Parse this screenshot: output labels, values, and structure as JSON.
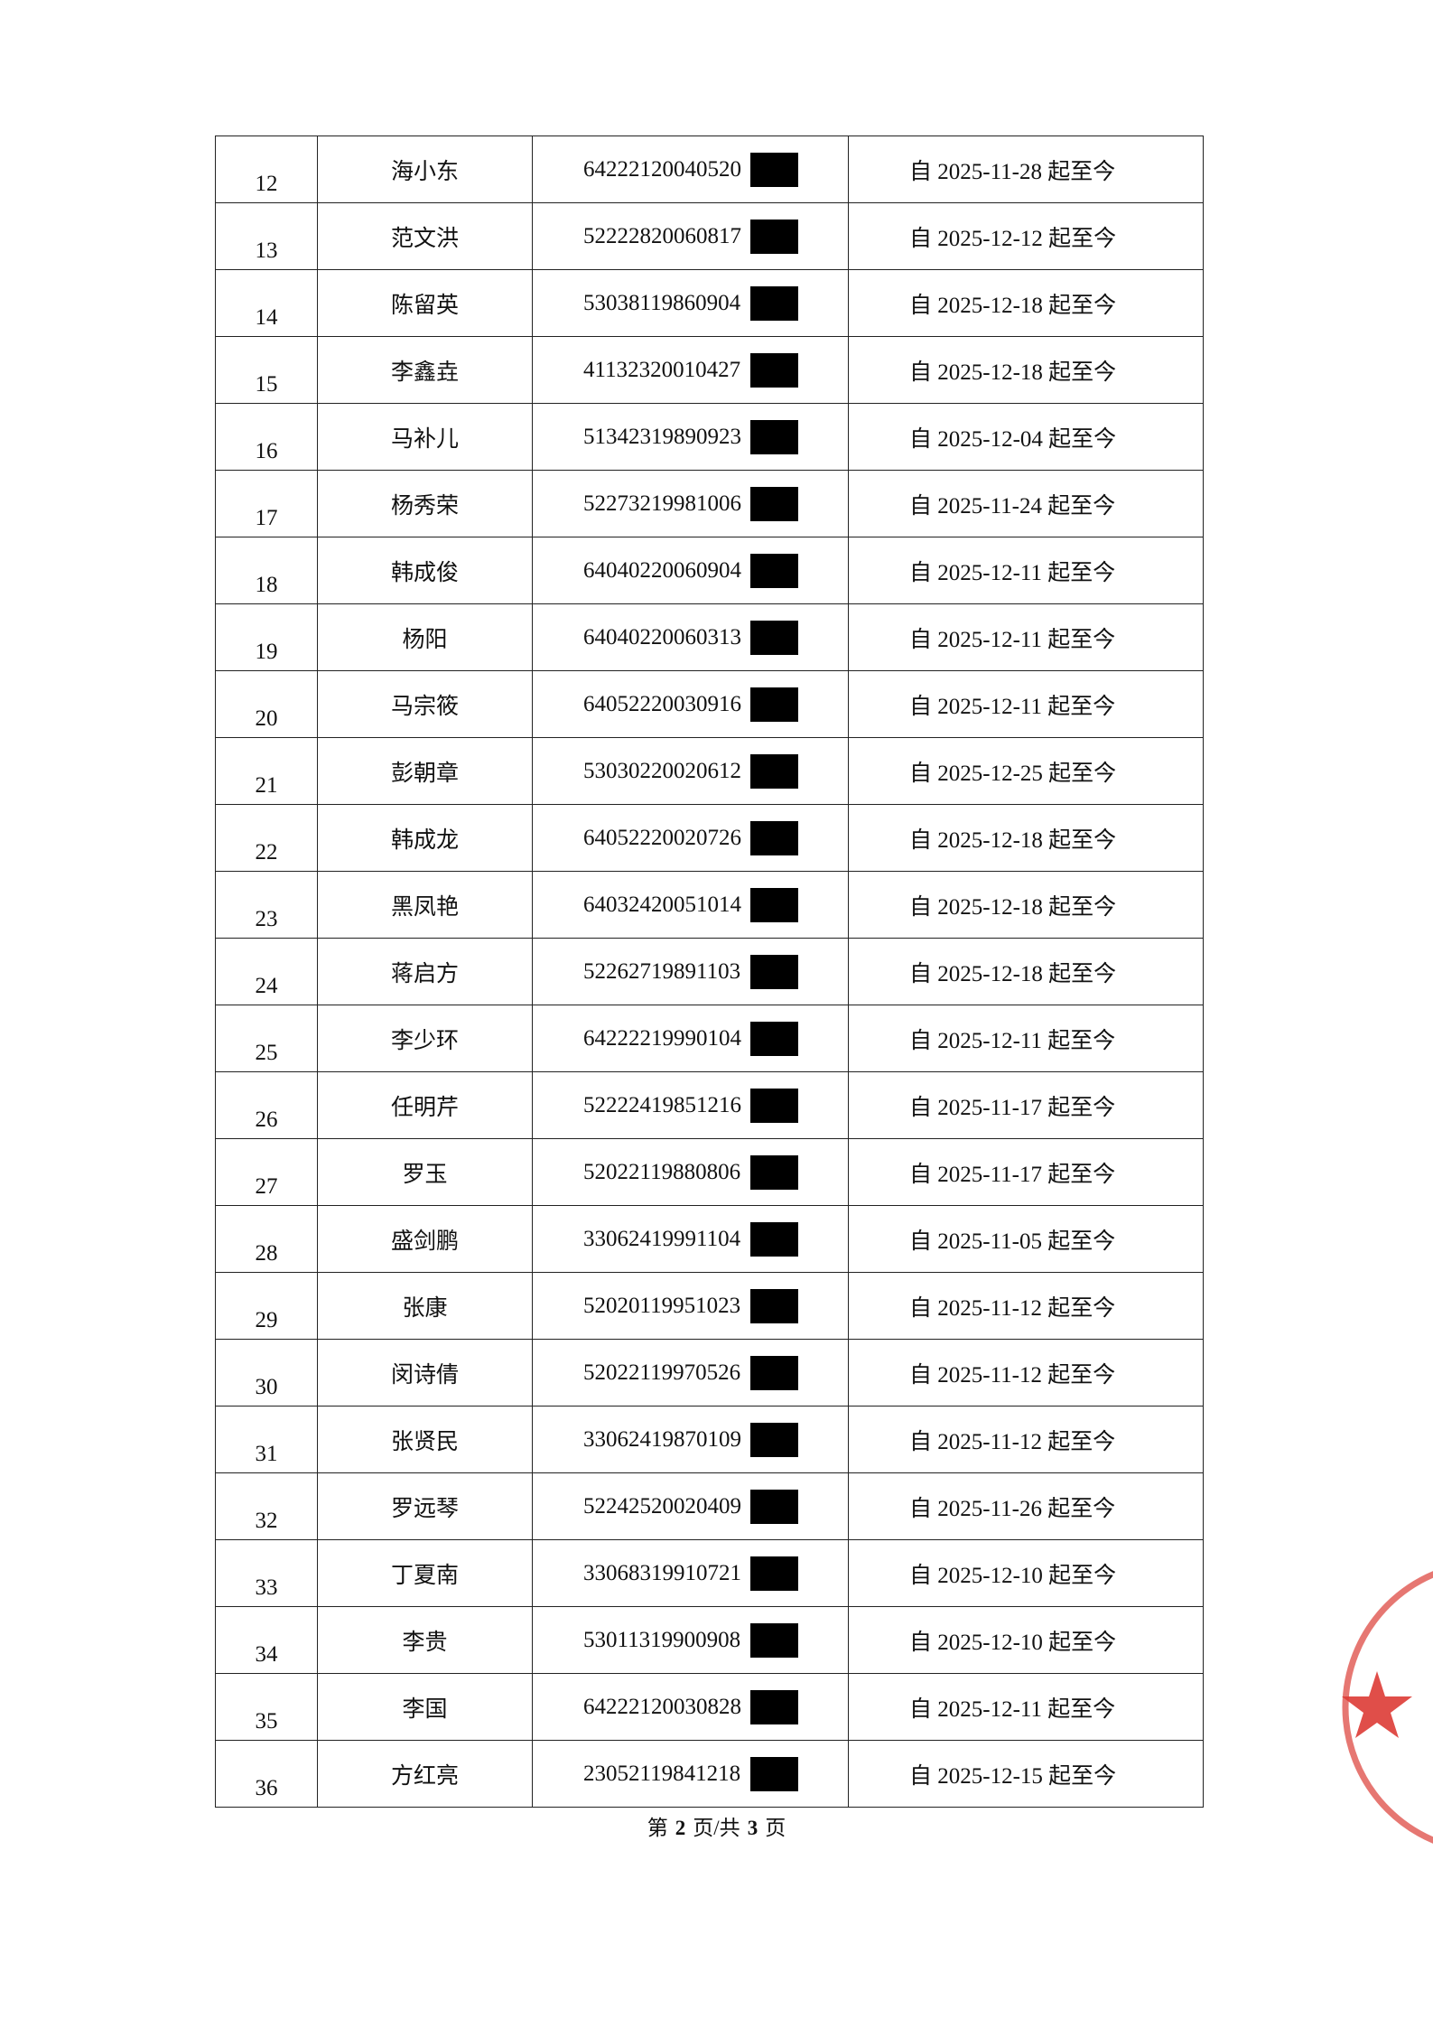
{
  "table": {
    "rows": [
      [
        "12",
        "海小东",
        "64222120040520",
        "自 2025-11-28 起至今"
      ],
      [
        "13",
        "范文洪",
        "52222820060817",
        "自 2025-12-12 起至今"
      ],
      [
        "14",
        "陈留英",
        "53038119860904",
        "自 2025-12-18 起至今"
      ],
      [
        "15",
        "李鑫垚",
        "41132320010427",
        "自 2025-12-18 起至今"
      ],
      [
        "16",
        "马补儿",
        "51342319890923",
        "自 2025-12-04 起至今"
      ],
      [
        "17",
        "杨秀荣",
        "52273219981006",
        "自 2025-11-24 起至今"
      ],
      [
        "18",
        "韩成俊",
        "64040220060904",
        "自 2025-12-11 起至今"
      ],
      [
        "19",
        "杨阳",
        "64040220060313",
        "自 2025-12-11 起至今"
      ],
      [
        "20",
        "马宗筱",
        "64052220030916",
        "自 2025-12-11 起至今"
      ],
      [
        "21",
        "彭朝章",
        "53030220020612",
        "自 2025-12-25 起至今"
      ],
      [
        "22",
        "韩成龙",
        "64052220020726",
        "自 2025-12-18 起至今"
      ],
      [
        "23",
        "黑凤艳",
        "64032420051014",
        "自 2025-12-18 起至今"
      ],
      [
        "24",
        "蒋启方",
        "52262719891103",
        "自 2025-12-18 起至今"
      ],
      [
        "25",
        "李少环",
        "64222219990104",
        "自 2025-12-11 起至今"
      ],
      [
        "26",
        "任明芹",
        "52222419851216",
        "自 2025-11-17 起至今"
      ],
      [
        "27",
        "罗玉",
        "52022119880806",
        "自 2025-11-17 起至今"
      ],
      [
        "28",
        "盛剑鹏",
        "33062419991104",
        "自 2025-11-05 起至今"
      ],
      [
        "29",
        "张康",
        "52020119951023",
        "自 2025-11-12 起至今"
      ],
      [
        "30",
        "闵诗倩",
        "52022119970526",
        "自 2025-11-12 起至今"
      ],
      [
        "31",
        "张贤民",
        "33062419870109",
        "自 2025-11-12 起至今"
      ],
      [
        "32",
        "罗远琴",
        "52242520020409",
        "自 2025-11-26 起至今"
      ],
      [
        "33",
        "丁夏南",
        "33068319910721",
        "自 2025-12-10 起至今"
      ],
      [
        "34",
        "李贵",
        "53011319900908",
        "自 2025-12-10 起至今"
      ],
      [
        "35",
        "李国",
        "64222120030828",
        "自 2025-12-11 起至今"
      ],
      [
        "36",
        "方红亮",
        "23052119841218",
        "自 2025-12-15 起至今"
      ]
    ]
  },
  "footer": {
    "prefix": "第",
    "page": "2",
    "middle": "页/共",
    "total": "3",
    "suffix": "页"
  }
}
